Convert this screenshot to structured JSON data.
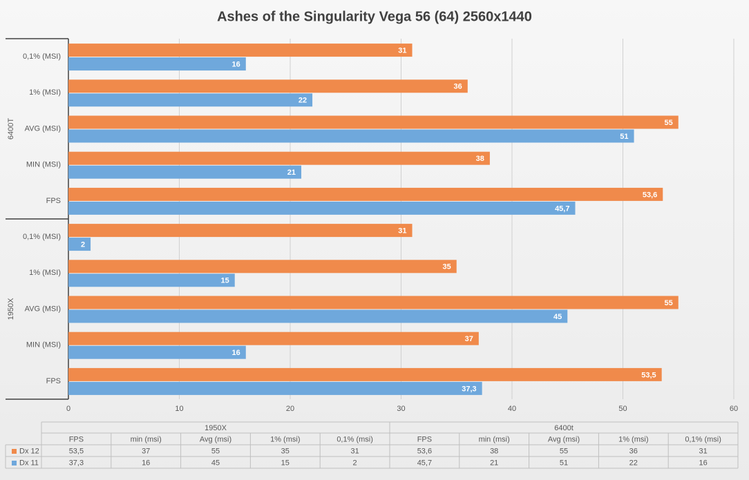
{
  "chart_data": {
    "type": "bar",
    "orientation": "horizontal",
    "title": "Ashes of the Singularity Vega 56 (64) 2560x1440",
    "groups": [
      {
        "axis_label": "1950X",
        "table_label": "1950X"
      },
      {
        "axis_label": "6400T",
        "table_label": "6400t"
      }
    ],
    "categories": [
      "FPS",
      "MIN (MSI)",
      "AVG (MSI)",
      "1% (MSI)",
      "0,1% (MSI)",
      "FPS",
      "MIN (MSI)",
      "AVG (MSI)",
      "1% (MSI)",
      "0,1% (MSI)"
    ],
    "table_categories": [
      "FPS",
      "min (msi)",
      "Avg (msi)",
      "1% (msi)",
      "0,1% (msi)",
      "FPS",
      "min (msi)",
      "Avg (msi)",
      "1% (msi)",
      "0,1% (msi)"
    ],
    "series": [
      {
        "name": "Dx 12",
        "color": "#f08a4b",
        "values": [
          53.5,
          37,
          55,
          35,
          31,
          53.6,
          38,
          55,
          36,
          31
        ],
        "value_labels": [
          "53,5",
          "37",
          "55",
          "35",
          "31",
          "53,6",
          "38",
          "55",
          "36",
          "31"
        ]
      },
      {
        "name": "Dx 11",
        "color": "#6fa8dc",
        "values": [
          37.3,
          16,
          45,
          15,
          2,
          45.7,
          21,
          51,
          22,
          16
        ],
        "value_labels": [
          "37,3",
          "16",
          "45",
          "15",
          "2",
          "45,7",
          "21",
          "51",
          "22",
          "16"
        ]
      }
    ],
    "xlim": [
      0,
      60
    ],
    "xticks": [
      0,
      10,
      20,
      30,
      40,
      50,
      60
    ],
    "grid": true
  }
}
